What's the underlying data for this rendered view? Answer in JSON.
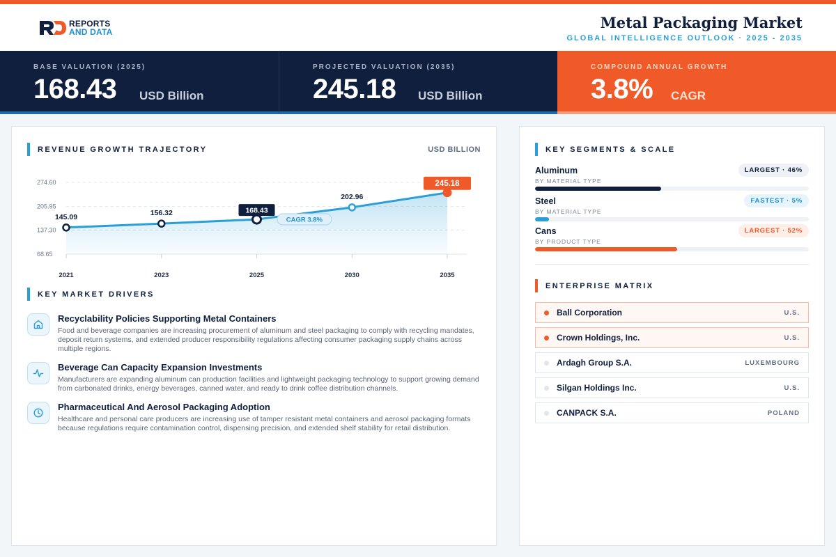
{
  "logo": {
    "line1": "REPORTS",
    "line2": "AND DATA"
  },
  "header": {
    "title": "Metal Packaging Market",
    "subtitle": "GLOBAL INTELLIGENCE OUTLOOK  ·  2025 - 2035"
  },
  "kpis": [
    {
      "label": "BASE VALUATION (2025)",
      "value": "168.43",
      "unit": "USD Billion"
    },
    {
      "label": "PROJECTED VALUATION (2035)",
      "value": "245.18",
      "unit": "USD Billion"
    },
    {
      "label": "COMPOUND ANNUAL GROWTH",
      "value": "3.8%",
      "unit": "CAGR"
    }
  ],
  "revenue": {
    "title": "REVENUE GROWTH TRAJECTORY",
    "unit": "USD BILLION",
    "cagr_label": "CAGR 3.8%"
  },
  "chart_data": {
    "type": "area",
    "title": "REVENUE GROWTH TRAJECTORY",
    "ylabel": "USD BILLION",
    "x": [
      "2021",
      "2023",
      "2025",
      "2030",
      "2035"
    ],
    "values": [
      145.09,
      156.32,
      168.43,
      202.96,
      245.18
    ],
    "value_labels": [
      "145.09",
      "156.32",
      "168.43",
      "202.96",
      "245.18"
    ],
    "yticks": [
      68.65,
      137.3,
      205.95,
      274.6
    ],
    "ytick_labels": [
      "68.65",
      "137.30",
      "205.95",
      "274.60"
    ],
    "ylim": [
      68.65,
      274.6
    ],
    "grid": true,
    "colors": {
      "line": "#2a9fd6",
      "highlight": "#0f1f3d",
      "projected": "#f05a28"
    }
  },
  "drivers": {
    "title": "KEY MARKET DRIVERS",
    "items": [
      {
        "icon": "home-icon",
        "title": "Recyclability Policies Supporting Metal Containers",
        "desc": "Food and beverage companies are increasing procurement of aluminum and steel packaging to comply with recycling mandates, deposit return systems, and extended producer responsibility regulations affecting consumer packaging supply chains across multiple regions."
      },
      {
        "icon": "activity-icon",
        "title": "Beverage Can Capacity Expansion Investments",
        "desc": "Manufacturers are expanding aluminum can production facilities and lightweight packaging technology to support growing demand from carbonated drinks, energy beverages, canned water, and ready to drink coffee distribution channels."
      },
      {
        "icon": "clock-icon",
        "title": "Pharmaceutical And Aerosol Packaging Adoption",
        "desc": "Healthcare and personal care producers are increasing use of tamper resistant metal containers and aerosol packaging formats because regulations require contamination control, dispensing precision, and extended shelf stability for retail distribution."
      }
    ]
  },
  "segments": {
    "title": "KEY SEGMENTS & SCALE",
    "items": [
      {
        "name": "Aluminum",
        "sub": "BY MATERIAL TYPE",
        "badge": "LARGEST · 46%",
        "share": 0.46,
        "color": "#0f1f3d",
        "badge_bg": "#eef1f5",
        "badge_fg": "#0f1f3d"
      },
      {
        "name": "Steel",
        "sub": "BY MATERIAL TYPE",
        "badge": "FASTEST · 5%",
        "share": 0.05,
        "color": "#2a9fd6",
        "badge_bg": "#e7f4fb",
        "badge_fg": "#1e8fd0"
      },
      {
        "name": "Cans",
        "sub": "BY PRODUCT TYPE",
        "badge": "LARGEST · 52%",
        "share": 0.52,
        "color": "#f05a28",
        "badge_bg": "#fdeee8",
        "badge_fg": "#f05a28"
      }
    ]
  },
  "matrix": {
    "title": "ENTERPRISE MATRIX",
    "companies": [
      {
        "name": "Ball Corporation",
        "country": "U.S.",
        "highlight": true
      },
      {
        "name": "Crown Holdings, Inc.",
        "country": "U.S.",
        "highlight": true
      },
      {
        "name": "Ardagh Group S.A.",
        "country": "LUXEMBOURG",
        "highlight": false
      },
      {
        "name": "Silgan Holdings Inc.",
        "country": "U.S.",
        "highlight": false
      },
      {
        "name": "CANPACK S.A.",
        "country": "POLAND",
        "highlight": false
      }
    ]
  }
}
